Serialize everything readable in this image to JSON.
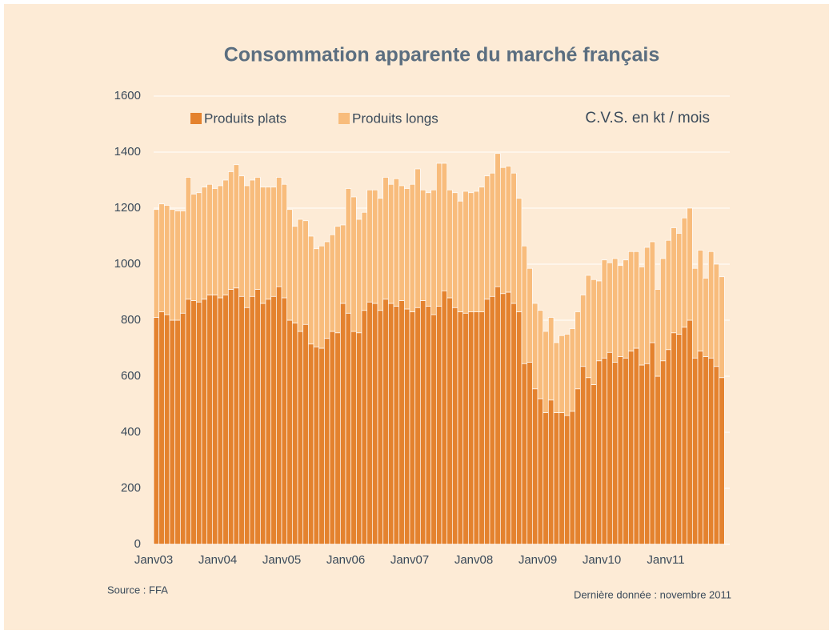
{
  "chart_data": {
    "type": "stacked_bar",
    "title": "Consommation apparente du marché français",
    "annotation": "C.V.S. en kt / mois",
    "source": "Source : FFA",
    "note": "Dernière donnée : novembre 2011",
    "categories": [
      "Janv03",
      null,
      null,
      null,
      null,
      null,
      null,
      null,
      null,
      null,
      null,
      null,
      "Janv04",
      null,
      null,
      null,
      null,
      null,
      null,
      null,
      null,
      null,
      null,
      null,
      "Janv05",
      null,
      null,
      null,
      null,
      null,
      null,
      null,
      null,
      null,
      null,
      null,
      "Janv06",
      null,
      null,
      null,
      null,
      null,
      null,
      null,
      null,
      null,
      null,
      null,
      "Janv07",
      null,
      null,
      null,
      null,
      null,
      null,
      null,
      null,
      null,
      null,
      null,
      "Janv08",
      null,
      null,
      null,
      null,
      null,
      null,
      null,
      null,
      null,
      null,
      null,
      "Janv09",
      null,
      null,
      null,
      null,
      null,
      null,
      null,
      null,
      null,
      null,
      null,
      "Janv10",
      null,
      null,
      null,
      null,
      null,
      null,
      null,
      null,
      null,
      null,
      null,
      "Janv11",
      null,
      null,
      null,
      null,
      null,
      null,
      null,
      null,
      null,
      null
    ],
    "series": [
      {
        "name": "Produits plats",
        "color": "#e4822e",
        "values": [
          810,
          830,
          820,
          800,
          800,
          825,
          875,
          870,
          865,
          875,
          890,
          890,
          880,
          890,
          910,
          915,
          885,
          845,
          885,
          910,
          860,
          875,
          885,
          920,
          880,
          800,
          790,
          760,
          785,
          715,
          705,
          700,
          735,
          760,
          755,
          860,
          825,
          760,
          755,
          835,
          865,
          860,
          835,
          875,
          860,
          850,
          870,
          840,
          830,
          845,
          870,
          850,
          820,
          850,
          905,
          880,
          845,
          830,
          825,
          830,
          830,
          830,
          875,
          885,
          920,
          895,
          900,
          860,
          830,
          645,
          650,
          555,
          520,
          470,
          515,
          470,
          470,
          460,
          475,
          555,
          635,
          595,
          570,
          655,
          665,
          685,
          650,
          670,
          665,
          690,
          700,
          640,
          645,
          720,
          600,
          655,
          695,
          755,
          750,
          775,
          800,
          665,
          690,
          670,
          665,
          635,
          595
        ]
      },
      {
        "name": "Produits longs",
        "color": "#f8bc7c",
        "values": [
          385,
          385,
          390,
          395,
          390,
          365,
          435,
          380,
          390,
          400,
          395,
          380,
          400,
          410,
          420,
          440,
          430,
          435,
          415,
          400,
          415,
          400,
          390,
          390,
          405,
          395,
          345,
          400,
          370,
          385,
          350,
          365,
          345,
          345,
          380,
          280,
          445,
          480,
          405,
          350,
          400,
          405,
          400,
          435,
          425,
          455,
          410,
          430,
          455,
          495,
          395,
          405,
          445,
          510,
          455,
          385,
          410,
          395,
          435,
          425,
          430,
          445,
          440,
          440,
          475,
          450,
          450,
          465,
          405,
          420,
          335,
          305,
          315,
          290,
          295,
          250,
          275,
          290,
          295,
          275,
          255,
          365,
          375,
          285,
          350,
          320,
          370,
          325,
          350,
          355,
          345,
          350,
          415,
          360,
          310,
          365,
          390,
          375,
          360,
          390,
          400,
          320,
          360,
          280,
          380,
          365,
          360
        ]
      }
    ],
    "ylim": [
      0,
      1600
    ],
    "yticks": [
      0,
      200,
      400,
      600,
      800,
      1000,
      1200,
      1400,
      1600
    ],
    "grid": true,
    "legend": "top-left"
  }
}
